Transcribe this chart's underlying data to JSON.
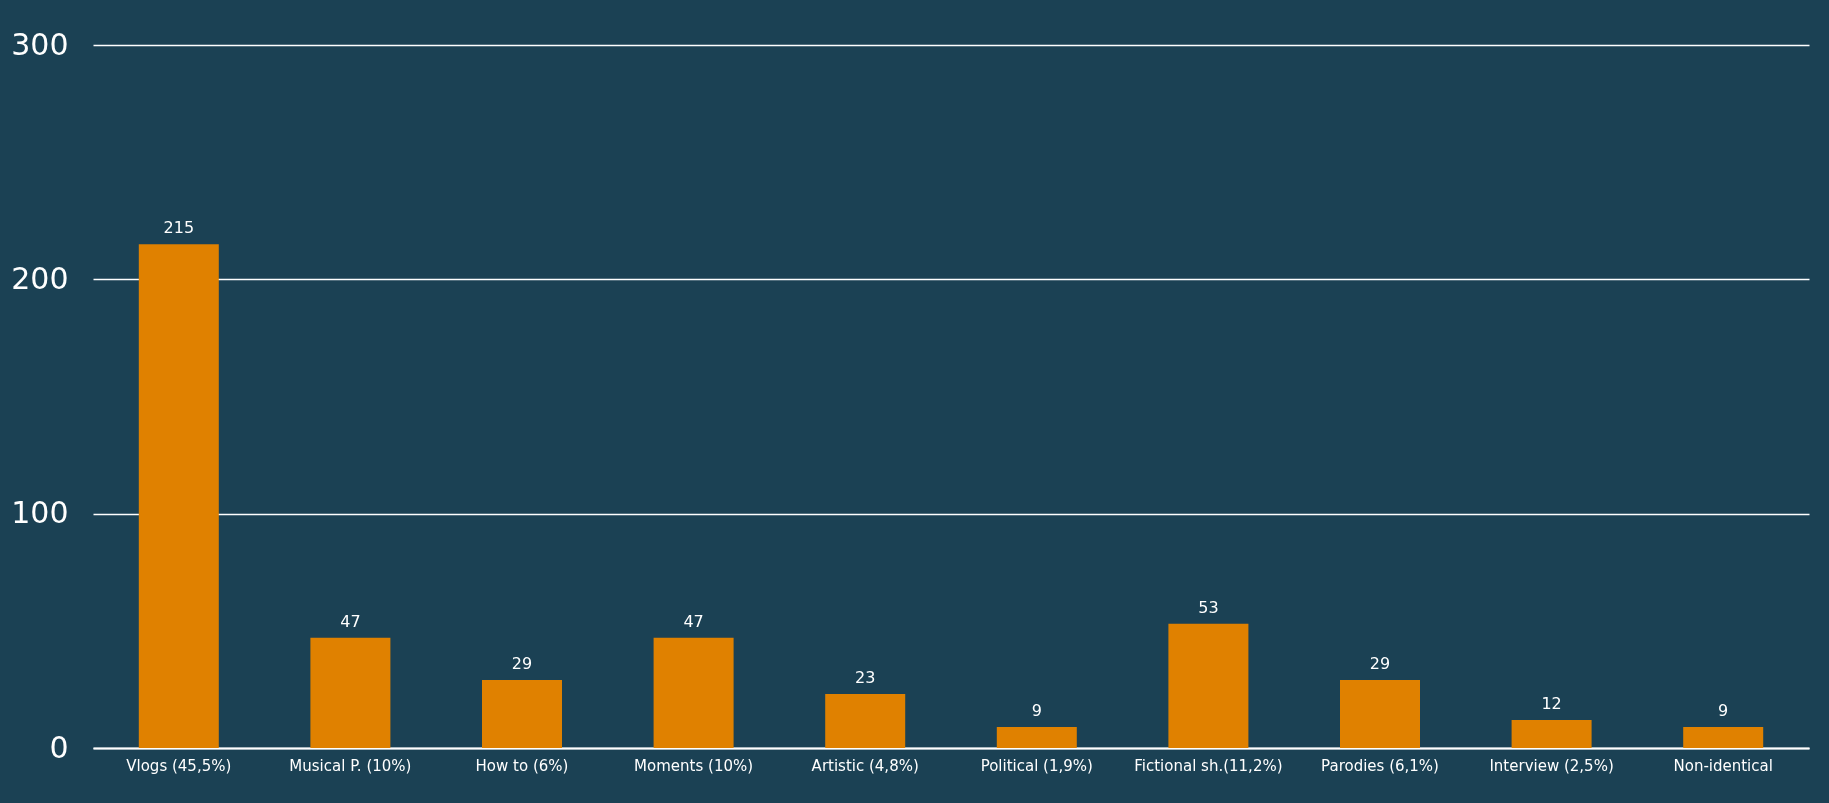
{
  "chart_data": {
    "type": "bar",
    "categories": [
      "Vlogs (45,5%)",
      "Musical P.  (10%)",
      "How to (6%)",
      "Moments (10%)",
      "Artistic (4,8%)",
      "Political (1,9%)",
      "Fictional sh.(11,2%)",
      "Parodies (6,1%)",
      "Interview (2,5%)",
      "Non-identical"
    ],
    "values": [
      215,
      47,
      29,
      47,
      23,
      9,
      53,
      29,
      12,
      9
    ],
    "color": "#e08100",
    "ylim": [
      0,
      300
    ],
    "yticks": [
      0,
      100,
      200,
      300
    ],
    "grid": "y",
    "data_labels": true
  }
}
